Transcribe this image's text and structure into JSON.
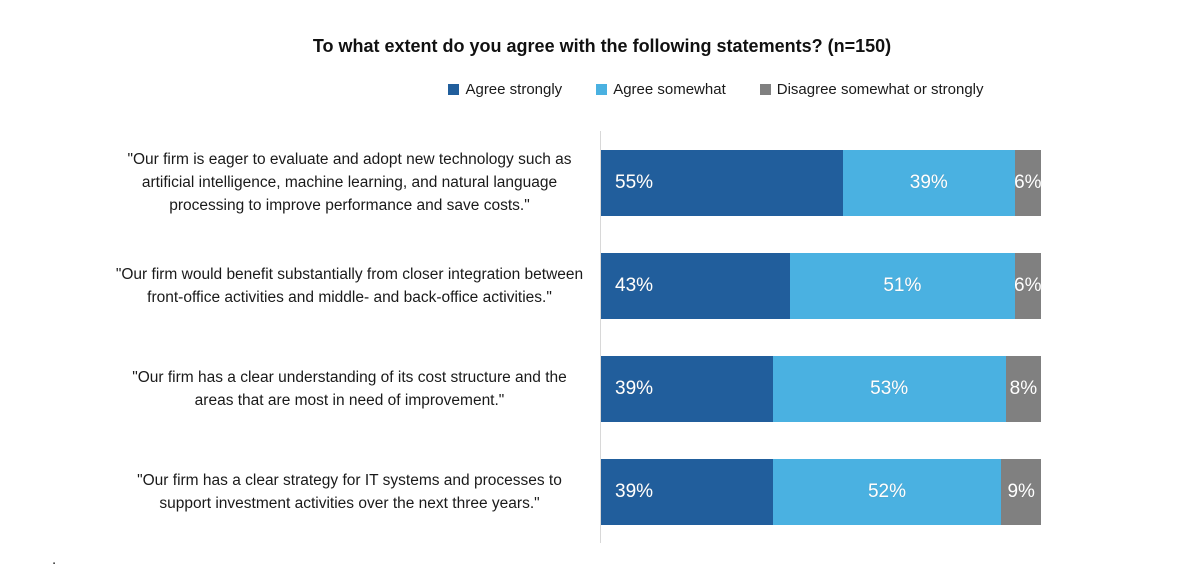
{
  "chart_data": {
    "type": "bar",
    "orientation": "horizontal",
    "stacked": true,
    "title": "To what extent do you agree with the following statements? (n=150)",
    "legend_position": "top",
    "categories": [
      "\"Our firm is eager to evaluate and adopt new technology such as artificial intelligence, machine learning, and natural language processing to improve performance and save costs.\"",
      "\"Our firm would benefit substantially from closer integration between front-office activities and middle- and back-office activities.\"",
      "\"Our firm has a clear understanding of its cost structure and the areas that are most in need of improvement.\"",
      "\"Our firm has a clear strategy for IT systems and processes to support investment activities over the next three years.\""
    ],
    "series": [
      {
        "name": "Agree strongly",
        "color": "#215e9c",
        "values": [
          55,
          43,
          39,
          39
        ]
      },
      {
        "name": "Agree somewhat",
        "color": "#4ab1e1",
        "values": [
          39,
          51,
          53,
          52
        ]
      },
      {
        "name": "Disagree somewhat or strongly",
        "color": "#808080",
        "values": [
          6,
          6,
          8,
          9
        ]
      }
    ],
    "xlim": [
      0,
      100
    ],
    "value_label_format": "{v}%",
    "value_label_color": "#ffffff",
    "axis_line_color": "#d8d8d8",
    "grid": false
  },
  "footnote": "."
}
